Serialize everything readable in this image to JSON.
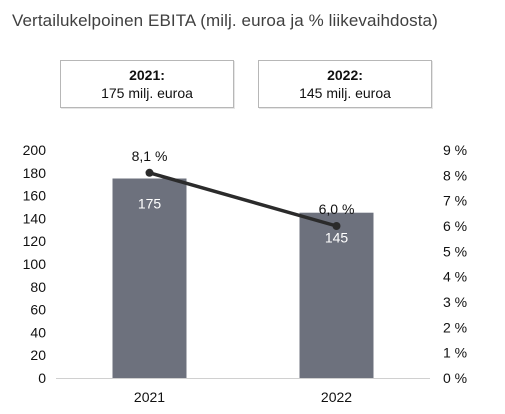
{
  "title": "Vertailukelpoinen EBITA (milj. euroa ja % liikevaihdosta)",
  "summary_cards": [
    {
      "year": "2021:",
      "value": "175 milj. euroa"
    },
    {
      "year": "2022:",
      "value": "145 milj. euroa"
    }
  ],
  "colors": {
    "bar": "#6d717d",
    "line": "#2b2b2b",
    "bar_label": "#ffffff",
    "axis": "#d0d0d0"
  },
  "chart_data": {
    "type": "bar",
    "categories": [
      "2021",
      "2022"
    ],
    "series": [
      {
        "name": "",
        "type": "bar",
        "axis": "left",
        "values": [
          175,
          145
        ],
        "labels": [
          "175",
          "145"
        ]
      },
      {
        "name": "",
        "type": "line",
        "axis": "right",
        "values": [
          8.1,
          6.0
        ],
        "labels": [
          "8,1 %",
          "6,0 %"
        ]
      }
    ],
    "y_left": {
      "range": [
        0,
        200
      ],
      "ticks": [
        "0",
        "20",
        "40",
        "60",
        "80",
        "100",
        "120",
        "140",
        "160",
        "180",
        "200"
      ]
    },
    "y_right": {
      "range": [
        0,
        9
      ],
      "ticks": [
        "0 %",
        "1 %",
        "2 %",
        "3 %",
        "4 %",
        "5 %",
        "6 %",
        "7 %",
        "8 %",
        "9 %"
      ]
    },
    "grid": false,
    "legend": "none"
  }
}
